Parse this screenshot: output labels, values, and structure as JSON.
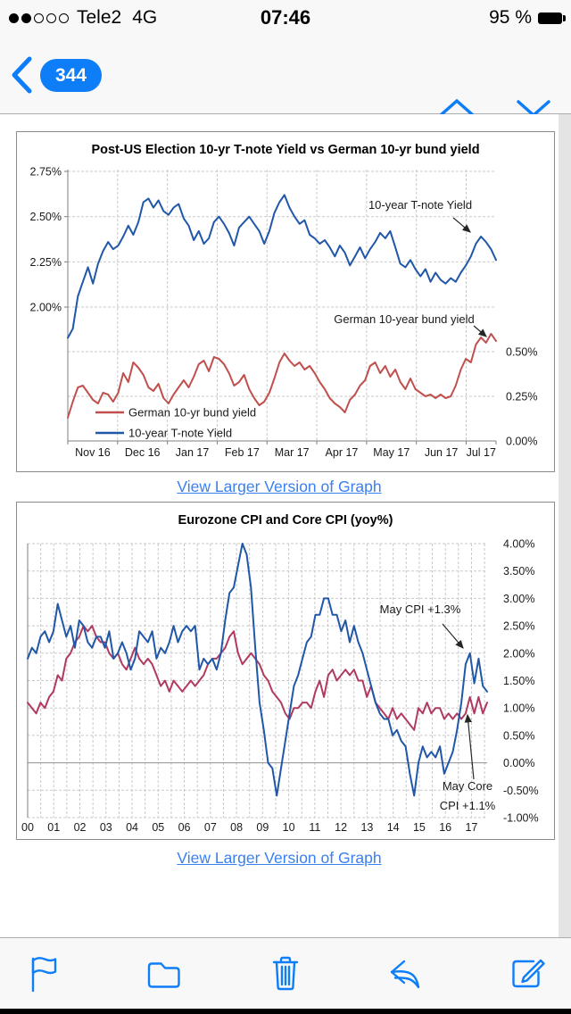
{
  "status_bar": {
    "carrier": "Tele2",
    "network": "4G",
    "time": "07:46",
    "battery_percent": "95 %",
    "signal_filled": 2,
    "signal_total": 5
  },
  "nav_bar": {
    "unread_count": "344"
  },
  "email": {
    "link1_label": "View Larger Version of Graph",
    "link2_label": "View Larger Version of Graph"
  },
  "toolbar": {
    "icons": [
      "flag-icon",
      "folder-icon",
      "trash-icon",
      "reply-icon",
      "compose-icon"
    ]
  },
  "colors": {
    "ios_blue": "#0d7df8",
    "link_blue": "#3b80f0",
    "tnote_blue": "#2057a8",
    "bund_red": "#c0504d",
    "cpi_blue": "#2057a8",
    "core_crimson": "#b03a60"
  },
  "chart_data": [
    {
      "id": "chart1",
      "type": "line",
      "title": "Post-US Election 10-yr T-note Yield vs German 10-yr bund yield",
      "x_range": [
        0,
        8.6
      ],
      "x_tick_labels": [
        "Nov 16",
        "Dec 16",
        "Jan 17",
        "Feb 17",
        "Mar 17",
        "Apr 17",
        "May 17",
        "Jun 17",
        "Jul 17"
      ],
      "left_axis": {
        "ticks": [
          "2.75%",
          "2.50%",
          "2.25%",
          "2.00%"
        ],
        "tick_values": [
          2.75,
          2.5,
          2.25,
          2.0
        ],
        "grid": [
          2.75,
          2.5,
          2.25,
          2.0
        ],
        "range": [
          1.26,
          2.76
        ]
      },
      "right_axis": {
        "ticks": [
          "0.50%",
          "0.25%",
          "0.00%"
        ],
        "tick_values": [
          0.5,
          0.25,
          0.0
        ],
        "grid": [
          0.5,
          0.25
        ],
        "zero_line": 0.0,
        "range": [
          0,
          1.52
        ]
      },
      "series": [
        {
          "name": "German 10-yr bund yield",
          "color": "#c0504d",
          "axis": "right",
          "values": [
            0.13,
            0.22,
            0.3,
            0.31,
            0.27,
            0.23,
            0.21,
            0.27,
            0.26,
            0.22,
            0.27,
            0.38,
            0.33,
            0.44,
            0.41,
            0.37,
            0.3,
            0.28,
            0.32,
            0.24,
            0.21,
            0.26,
            0.3,
            0.34,
            0.3,
            0.36,
            0.43,
            0.45,
            0.39,
            0.47,
            0.46,
            0.43,
            0.38,
            0.31,
            0.33,
            0.37,
            0.29,
            0.24,
            0.2,
            0.22,
            0.27,
            0.35,
            0.44,
            0.49,
            0.45,
            0.42,
            0.44,
            0.4,
            0.42,
            0.38,
            0.33,
            0.29,
            0.24,
            0.21,
            0.19,
            0.16,
            0.23,
            0.26,
            0.31,
            0.34,
            0.42,
            0.44,
            0.38,
            0.42,
            0.36,
            0.4,
            0.33,
            0.29,
            0.35,
            0.29,
            0.27,
            0.25,
            0.26,
            0.24,
            0.26,
            0.24,
            0.25,
            0.31,
            0.4,
            0.46,
            0.44,
            0.54,
            0.58,
            0.55,
            0.6,
            0.56
          ]
        },
        {
          "name": "10-year T-note Yield",
          "color": "#2057a8",
          "axis": "left",
          "values": [
            1.83,
            1.88,
            2.06,
            2.14,
            2.22,
            2.13,
            2.24,
            2.31,
            2.36,
            2.32,
            2.34,
            2.39,
            2.45,
            2.4,
            2.47,
            2.58,
            2.6,
            2.55,
            2.59,
            2.53,
            2.51,
            2.55,
            2.57,
            2.49,
            2.45,
            2.37,
            2.42,
            2.35,
            2.38,
            2.47,
            2.5,
            2.46,
            2.41,
            2.34,
            2.44,
            2.47,
            2.5,
            2.46,
            2.42,
            2.35,
            2.42,
            2.52,
            2.58,
            2.62,
            2.55,
            2.5,
            2.46,
            2.48,
            2.4,
            2.38,
            2.35,
            2.37,
            2.33,
            2.28,
            2.34,
            2.3,
            2.23,
            2.28,
            2.33,
            2.27,
            2.32,
            2.36,
            2.41,
            2.38,
            2.42,
            2.33,
            2.24,
            2.22,
            2.26,
            2.21,
            2.17,
            2.21,
            2.14,
            2.19,
            2.15,
            2.13,
            2.16,
            2.14,
            2.19,
            2.23,
            2.28,
            2.35,
            2.39,
            2.36,
            2.32,
            2.26
          ]
        }
      ],
      "legend": [
        {
          "label": "German 10-yr bund yield",
          "series": 0
        },
        {
          "label": "10-year T-note Yield",
          "series": 1
        }
      ],
      "annotations": [
        {
          "lines": [
            "10-year T-note Yield"
          ]
        },
        {
          "lines": [
            "German 10-year bund yield"
          ]
        }
      ]
    },
    {
      "id": "chart2",
      "type": "line",
      "title": "Eurozone CPI and Core CPI (yoy%)",
      "x_range": [
        0,
        17.6
      ],
      "x_tick_labels": [
        "00",
        "01",
        "02",
        "03",
        "04",
        "05",
        "06",
        "07",
        "08",
        "09",
        "10",
        "11",
        "12",
        "13",
        "14",
        "15",
        "16",
        "17"
      ],
      "right_axis": {
        "ticks": [
          "4.00%",
          "3.50%",
          "3.00%",
          "2.50%",
          "2.00%",
          "1.50%",
          "1.00%",
          "0.50%",
          "0.00%",
          "-0.50%",
          "-1.00%"
        ],
        "tick_values": [
          4,
          3.5,
          3,
          2.5,
          2,
          1.5,
          1,
          0.5,
          0,
          -0.5,
          -1
        ],
        "grid": [
          4,
          3.5,
          3,
          2.5,
          2,
          1.5,
          1,
          0.5,
          -0.5,
          -1
        ],
        "zero_line": 0.0,
        "range": [
          -1,
          4
        ]
      },
      "series": [
        {
          "name": "Core CPI",
          "color": "#b03a60",
          "axis": "right",
          "values": [
            1.1,
            1.0,
            0.9,
            1.1,
            1.0,
            1.2,
            1.3,
            1.6,
            1.5,
            1.9,
            2.0,
            2.2,
            2.3,
            2.5,
            2.4,
            2.5,
            2.3,
            2.2,
            2.2,
            2.0,
            1.9,
            2.0,
            1.8,
            1.7,
            1.9,
            2.1,
            1.9,
            1.8,
            1.9,
            1.8,
            1.6,
            1.4,
            1.5,
            1.3,
            1.5,
            1.4,
            1.3,
            1.4,
            1.5,
            1.4,
            1.5,
            1.6,
            1.8,
            1.9,
            1.9,
            2.0,
            2.1,
            2.3,
            2.4,
            2.0,
            1.8,
            1.9,
            2.0,
            1.9,
            1.8,
            1.6,
            1.5,
            1.3,
            1.2,
            1.1,
            0.9,
            0.8,
            1.0,
            1.0,
            1.1,
            1.1,
            1.0,
            1.3,
            1.5,
            1.2,
            1.6,
            1.7,
            1.5,
            1.6,
            1.7,
            1.6,
            1.7,
            1.5,
            1.5,
            1.2,
            1.4,
            1.1,
            1.0,
            0.9,
            0.8,
            1.0,
            0.8,
            0.9,
            0.8,
            0.7,
            0.6,
            1.0,
            0.9,
            1.1,
            0.9,
            1.0,
            1.0,
            0.8,
            0.9,
            0.8,
            0.9,
            0.8,
            0.9,
            1.2,
            0.9,
            1.2,
            0.9,
            1.1
          ]
        },
        {
          "name": "CPI",
          "color": "#2057a8",
          "axis": "right",
          "values": [
            1.9,
            2.1,
            2.0,
            2.3,
            2.4,
            2.2,
            2.4,
            2.9,
            2.6,
            2.3,
            2.5,
            2.1,
            2.6,
            2.5,
            2.2,
            2.1,
            2.3,
            2.3,
            2.1,
            2.4,
            1.9,
            2.0,
            2.2,
            2.0,
            1.7,
            1.9,
            2.4,
            2.3,
            2.2,
            2.4,
            1.9,
            2.1,
            2.0,
            2.2,
            2.5,
            2.2,
            2.4,
            2.5,
            2.4,
            2.5,
            1.7,
            1.9,
            1.8,
            1.9,
            1.7,
            2.0,
            2.6,
            3.1,
            3.2,
            3.6,
            4.0,
            3.8,
            3.2,
            2.1,
            1.1,
            0.6,
            0.0,
            -0.1,
            -0.6,
            -0.1,
            0.4,
            0.9,
            1.4,
            1.6,
            1.9,
            2.2,
            2.3,
            2.7,
            2.7,
            3.0,
            3.0,
            2.7,
            2.7,
            2.4,
            2.6,
            2.2,
            2.5,
            2.2,
            2.0,
            1.7,
            1.4,
            1.1,
            0.9,
            0.8,
            0.8,
            0.5,
            0.6,
            0.4,
            0.3,
            -0.2,
            -0.6,
            0.0,
            0.3,
            0.1,
            0.2,
            0.1,
            0.3,
            -0.2,
            0.0,
            0.2,
            0.6,
            1.1,
            1.8,
            2.0,
            1.45,
            1.9,
            1.4,
            1.3
          ]
        }
      ],
      "annotations": [
        {
          "lines": [
            "May CPI +1.3%"
          ]
        },
        {
          "lines": [
            "May Core",
            "CPI +1.1%"
          ]
        }
      ]
    }
  ]
}
